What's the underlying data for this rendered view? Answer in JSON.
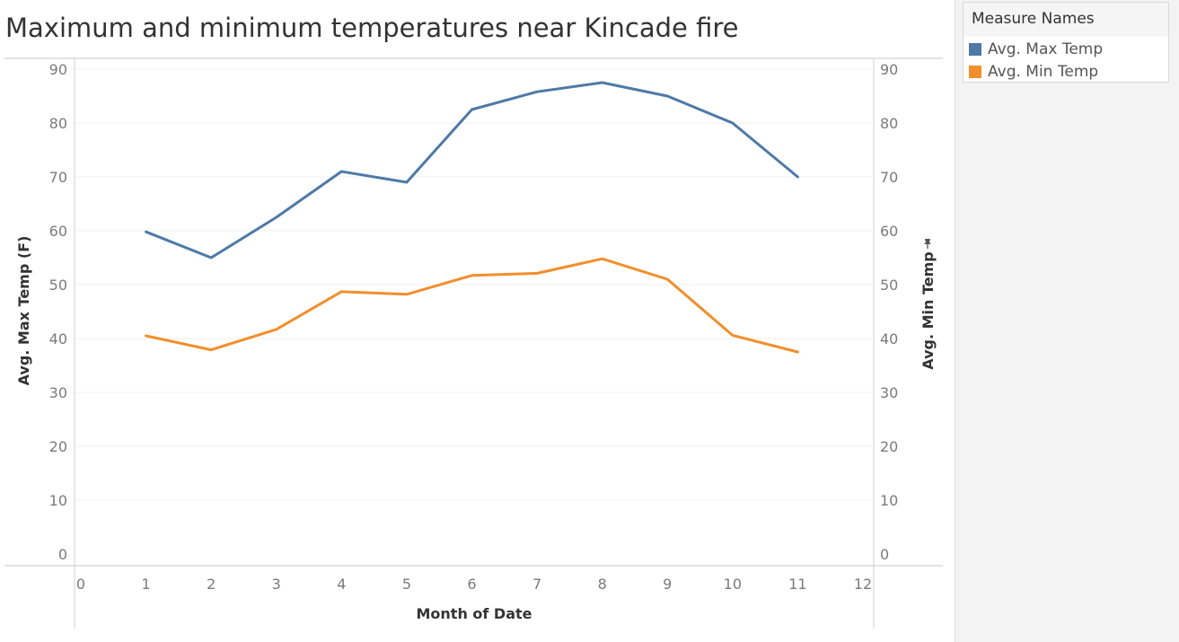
{
  "chart_data": {
    "type": "line",
    "title": "Maximum and minimum temperatures near Kincade fire",
    "xlabel": "Month of Date",
    "ylabel_left": "Avg. Max Temp (F)",
    "ylabel_right": "Avg. Min Temp",
    "pin_icon": "pin-icon",
    "xlim": [
      0,
      12
    ],
    "ylim_left": [
      0,
      90
    ],
    "ylim_right": [
      0,
      90
    ],
    "x_ticks": [
      0,
      1,
      2,
      3,
      4,
      5,
      6,
      7,
      8,
      9,
      10,
      11,
      12
    ],
    "y_ticks_left": [
      0,
      10,
      20,
      30,
      40,
      50,
      60,
      70,
      80,
      90
    ],
    "y_ticks_right": [
      0,
      10,
      20,
      30,
      40,
      50,
      60,
      70,
      80,
      90
    ],
    "grid": true,
    "legend": {
      "title": "Measure Names",
      "position": "top-right",
      "entries": [
        "Avg. Max Temp",
        "Avg. Min Temp"
      ]
    },
    "x": [
      1,
      2,
      3,
      4,
      5,
      6,
      7,
      8,
      9,
      10,
      11
    ],
    "series": [
      {
        "name": "Avg. Max Temp",
        "axis": "left",
        "color": "#4e79a7",
        "values": [
          59.8,
          55.0,
          62.5,
          71.0,
          69.0,
          82.5,
          85.8,
          87.5,
          85.0,
          80.0,
          70.0
        ]
      },
      {
        "name": "Avg. Min Temp",
        "axis": "right",
        "color": "#f28e2b",
        "values": [
          40.5,
          37.9,
          41.7,
          48.7,
          48.2,
          51.7,
          52.1,
          54.8,
          51.0,
          40.6,
          37.5
        ]
      }
    ]
  }
}
